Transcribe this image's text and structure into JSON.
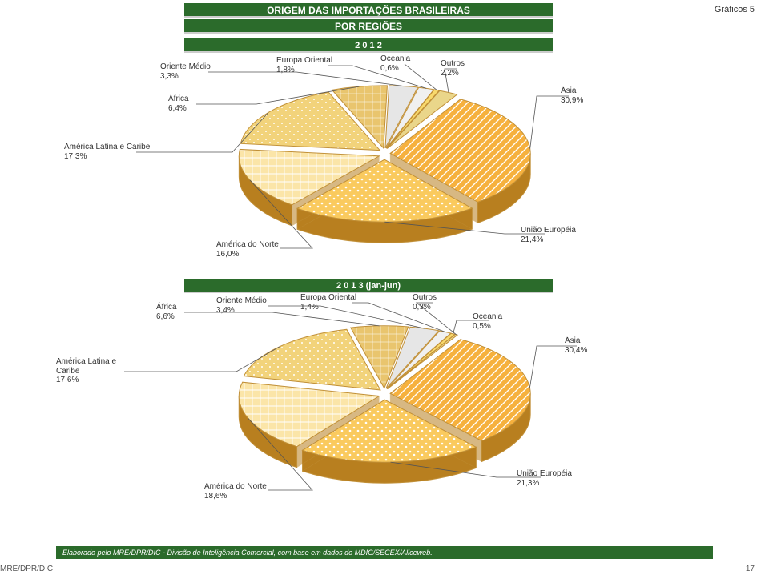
{
  "page_label": "Gráficos 5",
  "title_line1": "ORIGEM DAS IMPORTAÇÕES BRASILEIRAS",
  "title_line2": "POR REGIÕES",
  "year_2012": "2 0 1 2",
  "year_2013": "2 0 1 3 (jan-jun)",
  "footer_note": "Elaborado pelo MRE/DPR/DIC - Divisão de Inteligência Comercial, com base em dados do MDIC/SECEX/Aliceweb.",
  "corner_source": "MRE/DPR/DIC",
  "corner_page": "17",
  "colors": {
    "band": "#2b6b2b",
    "edge": "#c19038",
    "side_dark": "#b87f1f",
    "fills": {
      "asia": "#f6b13e",
      "ue": "#faca5e",
      "anorte": "#fbe5a8",
      "amlatina": "#f2d37b",
      "africa": "#e9c56e",
      "omedio": "#e6e6e6",
      "eoriental": "#f0f0f0",
      "oceania": "#f8d96d",
      "outros": "#ead68a"
    }
  },
  "chart_2012": {
    "type": "pie-3d",
    "slices": [
      {
        "key": "asia",
        "label": "Ásia",
        "pct": 30.9
      },
      {
        "key": "ue",
        "label": "União Européia",
        "pct": 21.4
      },
      {
        "key": "anorte",
        "label": "América do Norte",
        "pct": 16.0
      },
      {
        "key": "amlatina",
        "label": "América Latina e Caribe",
        "pct": 17.3
      },
      {
        "key": "africa",
        "label": "África",
        "pct": 6.4
      },
      {
        "key": "omedio",
        "label": "Oriente Médio",
        "pct": 3.3
      },
      {
        "key": "eoriental",
        "label": "Europa Oriental",
        "pct": 1.8
      },
      {
        "key": "oceania",
        "label": "Oceania",
        "pct": 0.6
      },
      {
        "key": "outros",
        "label": "Outros",
        "pct": 2.2
      }
    ],
    "callouts": {
      "omedio": "Oriente Médio\n3,3%",
      "africa": "África\n6,4%",
      "amlatina": "América Latina e Caribe\n17,3%",
      "anorte": "América do Norte\n16,0%",
      "eoriental": "Europa Oriental\n1,8%",
      "oceania": "Oceania\n0,6%",
      "outros": "Outros\n2,2%",
      "asia": "Ásia\n30,9%",
      "ue": "União Européia\n21,4%"
    }
  },
  "chart_2013": {
    "type": "pie-3d",
    "slices": [
      {
        "key": "asia",
        "label": "Ásia",
        "pct": 30.4
      },
      {
        "key": "ue",
        "label": "União Européia",
        "pct": 21.3
      },
      {
        "key": "anorte",
        "label": "América do Norte",
        "pct": 18.6
      },
      {
        "key": "amlatina",
        "label": "América Latina e Caribe",
        "pct": 17.6
      },
      {
        "key": "africa",
        "label": "África",
        "pct": 6.6
      },
      {
        "key": "omedio",
        "label": "Oriente Médio",
        "pct": 3.4
      },
      {
        "key": "eoriental",
        "label": "Europa Oriental",
        "pct": 1.4
      },
      {
        "key": "oceania",
        "label": "Oceania",
        "pct": 0.5
      },
      {
        "key": "outros",
        "label": "Outros",
        "pct": 0.3
      }
    ],
    "callouts": {
      "africa": "África\n6,6%",
      "omedio": "Oriente Médio\n3,4%",
      "amlatina": "América Latina e\nCaribe\n17,6%",
      "anorte": "América do Norte\n18,6%",
      "eoriental": "Europa Oriental\n1,4%",
      "outros": "Outros\n0,3%",
      "oceania": "Oceania\n0,5%",
      "asia": "Ásia\n30,4%",
      "ue": "União Européia\n21,3%"
    }
  }
}
